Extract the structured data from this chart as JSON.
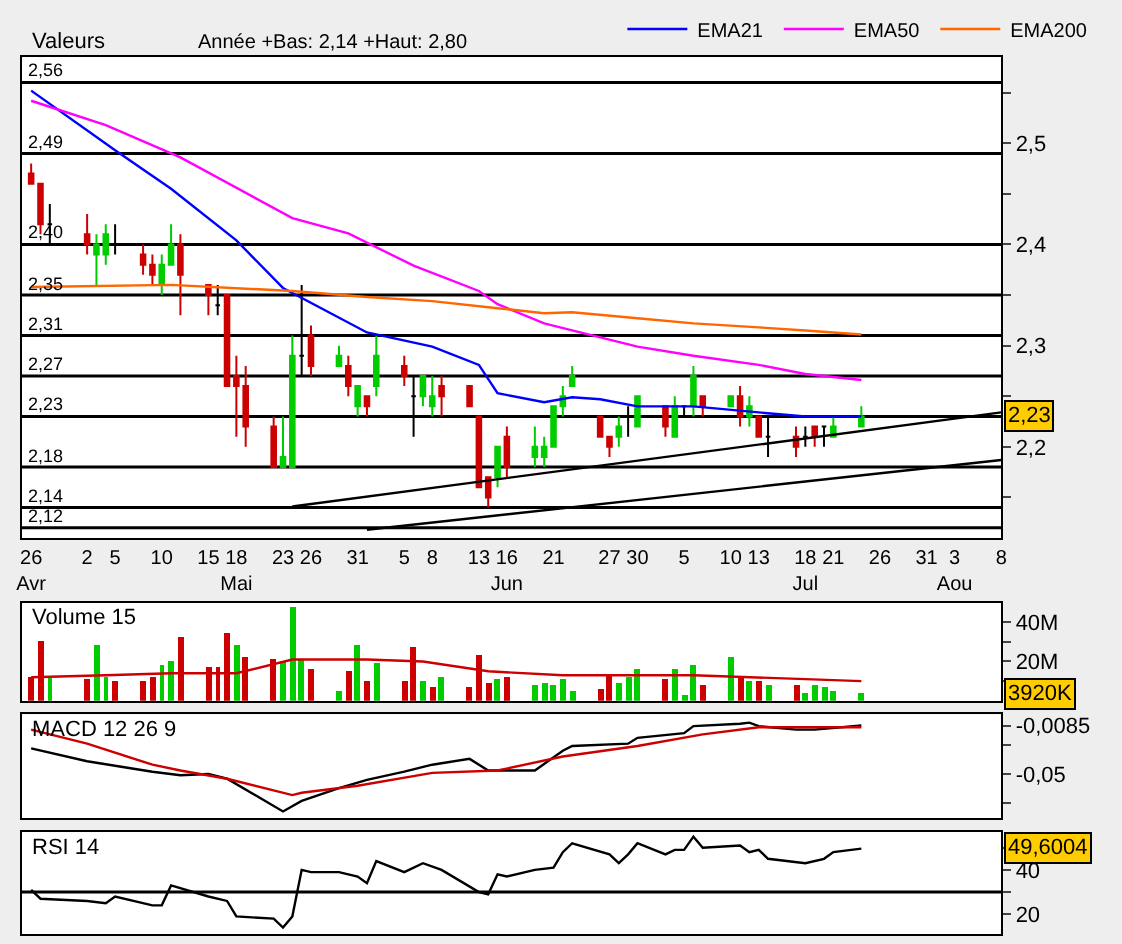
{
  "chart_data": [
    {
      "type": "candlestick",
      "title": "Valeurs",
      "annotations": [
        "Année +Bas: 2,14 +Haut: 2,80",
        {
          "text": "2,23",
          "y": 2.23
        }
      ],
      "x": [
        "--04-26",
        "--04-27",
        "--04-28",
        "--05-02",
        "--05-03",
        "--05-04",
        "--05-05",
        "--05-08",
        "--05-09",
        "--05-10",
        "--05-11",
        "--05-12",
        "--05-15",
        "--05-16",
        "--05-17",
        "--05-18",
        "--05-19",
        "--05-22",
        "--05-23",
        "--05-24",
        "--05-25",
        "--05-26",
        "--05-29",
        "--05-30",
        "--05-31",
        "--06-01",
        "--06-02",
        "--06-05",
        "--06-06",
        "--06-07",
        "--06-08",
        "--06-09",
        "--06-12",
        "--06-13",
        "--06-14",
        "--06-15",
        "--06-16",
        "--06-19",
        "--06-20",
        "--06-21",
        "--06-22",
        "--06-23",
        "--06-26",
        "--06-27",
        "--06-28",
        "--06-29",
        "--06-30",
        "--07-03",
        "--07-04",
        "--07-05",
        "--07-06",
        "--07-07",
        "--07-10",
        "--07-11",
        "--07-12",
        "--07-13",
        "--07-14",
        "--07-17",
        "--07-18",
        "--07-19",
        "--07-20",
        "--07-21",
        "--07-24"
      ],
      "ohlc": [
        [
          2.47,
          2.48,
          2.46,
          2.46
        ],
        [
          2.46,
          2.46,
          2.41,
          2.42
        ],
        [
          2.42,
          2.44,
          2.4,
          2.42
        ],
        [
          2.41,
          2.43,
          2.39,
          2.4
        ],
        [
          2.39,
          2.41,
          2.36,
          2.4
        ],
        [
          2.39,
          2.42,
          2.38,
          2.41
        ],
        [
          2.4,
          2.42,
          2.39,
          2.4
        ],
        [
          2.39,
          2.4,
          2.37,
          2.38
        ],
        [
          2.38,
          2.39,
          2.36,
          2.37
        ],
        [
          2.36,
          2.39,
          2.35,
          2.38
        ],
        [
          2.38,
          2.42,
          2.38,
          2.4
        ],
        [
          2.4,
          2.41,
          2.33,
          2.37
        ],
        [
          2.36,
          2.36,
          2.33,
          2.35
        ],
        [
          2.34,
          2.36,
          2.33,
          2.34
        ],
        [
          2.35,
          2.35,
          2.26,
          2.26
        ],
        [
          2.27,
          2.29,
          2.21,
          2.26
        ],
        [
          2.26,
          2.28,
          2.2,
          2.22
        ],
        [
          2.22,
          2.23,
          2.18,
          2.18
        ],
        [
          2.18,
          2.23,
          2.18,
          2.19
        ],
        [
          2.18,
          2.31,
          2.18,
          2.29
        ],
        [
          2.29,
          2.36,
          2.27,
          2.29
        ],
        [
          2.31,
          2.32,
          2.27,
          2.28
        ],
        [
          2.28,
          2.3,
          2.28,
          2.29
        ],
        [
          2.28,
          2.29,
          2.25,
          2.26
        ],
        [
          2.24,
          2.26,
          2.23,
          2.26
        ],
        [
          2.25,
          2.25,
          2.23,
          2.24
        ],
        [
          2.26,
          2.31,
          2.25,
          2.29
        ],
        [
          2.28,
          2.29,
          2.26,
          2.27
        ],
        [
          2.25,
          2.27,
          2.21,
          2.25
        ],
        [
          2.25,
          2.27,
          2.24,
          2.27
        ],
        [
          2.24,
          2.27,
          2.23,
          2.25
        ],
        [
          2.26,
          2.27,
          2.23,
          2.25
        ],
        [
          2.26,
          2.26,
          2.24,
          2.24
        ],
        [
          2.23,
          2.23,
          2.16,
          2.16
        ],
        [
          2.17,
          2.17,
          2.14,
          2.15
        ],
        [
          2.17,
          2.2,
          2.16,
          2.2
        ],
        [
          2.21,
          2.22,
          2.17,
          2.18
        ],
        [
          2.19,
          2.22,
          2.18,
          2.2
        ],
        [
          2.19,
          2.21,
          2.18,
          2.2
        ],
        [
          2.2,
          2.24,
          2.2,
          2.24
        ],
        [
          2.24,
          2.26,
          2.23,
          2.25
        ],
        [
          2.26,
          2.28,
          2.26,
          2.27
        ],
        [
          2.23,
          2.23,
          2.21,
          2.21
        ],
        [
          2.21,
          2.21,
          2.19,
          2.2
        ],
        [
          2.21,
          2.23,
          2.2,
          2.22
        ],
        [
          2.23,
          2.24,
          2.21,
          2.23
        ],
        [
          2.22,
          2.25,
          2.22,
          2.25
        ],
        [
          2.24,
          2.24,
          2.21,
          2.22
        ],
        [
          2.21,
          2.25,
          2.21,
          2.24
        ],
        [
          2.24,
          2.24,
          2.23,
          2.24
        ],
        [
          2.24,
          2.28,
          2.23,
          2.27
        ],
        [
          2.25,
          2.25,
          2.23,
          2.24
        ],
        [
          2.24,
          2.25,
          2.24,
          2.25
        ],
        [
          2.25,
          2.26,
          2.22,
          2.23
        ],
        [
          2.23,
          2.25,
          2.22,
          2.24
        ],
        [
          2.23,
          2.23,
          2.21,
          2.21
        ],
        [
          2.21,
          2.23,
          2.19,
          2.21
        ],
        [
          2.21,
          2.22,
          2.19,
          2.2
        ],
        [
          2.21,
          2.22,
          2.2,
          2.21
        ],
        [
          2.22,
          2.22,
          2.2,
          2.21
        ],
        [
          2.22,
          2.22,
          2.2,
          2.22
        ],
        [
          2.21,
          2.23,
          2.21,
          2.22
        ],
        [
          2.22,
          2.24,
          2.22,
          2.23
        ]
      ],
      "colors": [
        "#cc0000",
        "#cc0000",
        "#000000",
        "#cc0000",
        "#00cc00",
        "#00cc00",
        "#000000",
        "#cc0000",
        "#cc0000",
        "#00cc00",
        "#00cc00",
        "#cc0000",
        "#cc0000",
        "#000000",
        "#cc0000",
        "#cc0000",
        "#cc0000",
        "#cc0000",
        "#00cc00",
        "#00cc00",
        "#000000",
        "#cc0000",
        "#00cc00",
        "#cc0000",
        "#00cc00",
        "#cc0000",
        "#00cc00",
        "#cc0000",
        "#000000",
        "#00cc00",
        "#00cc00",
        "#cc0000",
        "#cc0000",
        "#cc0000",
        "#cc0000",
        "#00cc00",
        "#cc0000",
        "#00cc00",
        "#00cc00",
        "#00cc00",
        "#00cc00",
        "#00cc00",
        "#cc0000",
        "#cc0000",
        "#00cc00",
        "#000000",
        "#00cc00",
        "#cc0000",
        "#00cc00",
        "#000000",
        "#00cc00",
        "#cc0000",
        "#00cc00",
        "#cc0000",
        "#00cc00",
        "#cc0000",
        "#000000",
        "#cc0000",
        "#000000",
        "#cc0000",
        "#000000",
        "#00cc00",
        "#00cc00"
      ],
      "series": [
        {
          "type": "line",
          "name": "EMA21",
          "color": "#0000ff",
          "x": [
            "--04-26",
            "--05-05",
            "--05-11",
            "--05-18",
            "--05-23",
            "--06-01",
            "--06-08",
            "--06-13",
            "--06-15",
            "--06-20",
            "--06-23",
            "--06-26",
            "--06-30",
            "--07-06",
            "--07-13",
            "--07-18",
            "--07-24"
          ],
          "values": [
            2.552,
            2.493,
            2.455,
            2.404,
            2.357,
            2.313,
            2.299,
            2.281,
            2.253,
            2.244,
            2.249,
            2.247,
            2.24,
            2.24,
            2.234,
            2.23,
            2.23
          ]
        },
        {
          "type": "line",
          "name": "EMA50",
          "color": "#ff00ff",
          "x": [
            "--04-26",
            "--05-04",
            "--05-12",
            "--05-24",
            "--05-30",
            "--06-06",
            "--06-13",
            "--06-15",
            "--06-20",
            "--06-23",
            "--06-30",
            "--07-06",
            "--07-13",
            "--07-18",
            "--07-24"
          ],
          "values": [
            2.542,
            2.518,
            2.486,
            2.426,
            2.411,
            2.379,
            2.354,
            2.341,
            2.322,
            2.315,
            2.299,
            2.29,
            2.281,
            2.272,
            2.266
          ]
        },
        {
          "type": "line",
          "name": "EMA200",
          "color": "#ff6600",
          "x": [
            "--04-26",
            "--05-11",
            "--05-24",
            "--06-01",
            "--06-08",
            "--06-15",
            "--06-20",
            "--06-23",
            "--06-30",
            "--07-06",
            "--07-13",
            "--07-18",
            "--07-24"
          ],
          "values": [
            2.358,
            2.36,
            2.354,
            2.348,
            2.344,
            2.337,
            2.332,
            2.333,
            2.327,
            2.322,
            2.318,
            2.315,
            2.311
          ]
        },
        {
          "type": "line",
          "color": "#000000",
          "x": [
            "--05-24",
            "--08-08"
          ],
          "values": [
            2.141,
            2.234
          ]
        },
        {
          "type": "line",
          "color": "#000000",
          "x": [
            "--06-01",
            "--08-08"
          ],
          "values": [
            2.118,
            2.187
          ]
        }
      ],
      "ref_lines": [
        {
          "axis": "y",
          "value": 2.56,
          "label": "2,56"
        },
        {
          "axis": "y",
          "value": 2.49,
          "label": "2,49"
        },
        {
          "axis": "y",
          "value": 2.4,
          "label": "2,40"
        },
        {
          "axis": "y",
          "value": 2.35,
          "label": "2,35"
        },
        {
          "axis": "y",
          "value": 2.31,
          "label": "2,31"
        },
        {
          "axis": "y",
          "value": 2.27,
          "label": "2,27"
        },
        {
          "axis": "y",
          "value": 2.23,
          "label": "2,23"
        },
        {
          "axis": "y",
          "value": 2.18,
          "label": "2,18"
        },
        {
          "axis": "y",
          "value": 2.14,
          "label": "2,14"
        },
        {
          "axis": "y",
          "value": 2.12,
          "label": "2,12"
        }
      ],
      "xlim": [
        "--04-25",
        "--08-08"
      ],
      "xticks": [
        {
          "value": "--04-26",
          "label": "26\nAvr"
        },
        {
          "value": "--05-02",
          "label": "2"
        },
        {
          "value": "--05-05",
          "label": "5"
        },
        {
          "value": "--05-10",
          "label": "10"
        },
        {
          "value": "--05-15",
          "label": "15"
        },
        {
          "value": "--05-18",
          "label": "18\nMai"
        },
        {
          "value": "--05-23",
          "label": "23"
        },
        {
          "value": "--05-26",
          "label": "26"
        },
        {
          "value": "--05-31",
          "label": "31"
        },
        {
          "value": "--06-05",
          "label": "5"
        },
        {
          "value": "--06-08",
          "label": "8"
        },
        {
          "value": "--06-13",
          "label": "13"
        },
        {
          "value": "--06-16",
          "label": "16\nJun"
        },
        {
          "value": "--06-21",
          "label": "21"
        },
        {
          "value": "--06-27",
          "label": "27"
        },
        {
          "value": "--06-30",
          "label": "30"
        },
        {
          "value": "--07-05",
          "label": "5"
        },
        {
          "value": "--07-10",
          "label": "10"
        },
        {
          "value": "--07-13",
          "label": "13"
        },
        {
          "value": "--07-18",
          "label": "18\nJul"
        },
        {
          "value": "--07-21",
          "label": "21"
        },
        {
          "value": "--07-26",
          "label": "26"
        },
        {
          "value": "--07-31",
          "label": "31"
        },
        {
          "value": "--08-03",
          "label": "3\nAou"
        },
        {
          "value": "--08-08",
          "label": "8"
        }
      ],
      "ylim": [
        2.11,
        2.585
      ],
      "yticks": [
        {
          "value": 2.15,
          "label": null
        },
        {
          "value": 2.2,
          "label": "2,2"
        },
        {
          "value": 2.25,
          "label": null
        },
        {
          "value": 2.3,
          "label": "2,3"
        },
        {
          "value": 2.35,
          "label": null
        },
        {
          "value": 2.4,
          "label": "2,4"
        },
        {
          "value": 2.45,
          "label": null
        },
        {
          "value": 2.5,
          "label": "2,5"
        },
        {
          "value": 2.55,
          "label": null
        }
      ],
      "legend": "top right"
    },
    {
      "type": "bar",
      "title": "Volume 15",
      "annotations": [
        {
          "text": "3920K",
          "y": 3.92
        }
      ],
      "x": [
        "--04-26",
        "--04-27",
        "--04-28",
        "--05-02",
        "--05-03",
        "--05-04",
        "--05-05",
        "--05-08",
        "--05-09",
        "--05-10",
        "--05-11",
        "--05-12",
        "--05-15",
        "--05-16",
        "--05-17",
        "--05-18",
        "--05-19",
        "--05-22",
        "--05-23",
        "--05-24",
        "--05-25",
        "--05-26",
        "--05-29",
        "--05-30",
        "--05-31",
        "--06-01",
        "--06-02",
        "--06-05",
        "--06-06",
        "--06-07",
        "--06-08",
        "--06-09",
        "--06-12",
        "--06-13",
        "--06-14",
        "--06-15",
        "--06-16",
        "--06-19",
        "--06-20",
        "--06-21",
        "--06-22",
        "--06-23",
        "--06-26",
        "--06-27",
        "--06-28",
        "--06-29",
        "--06-30",
        "--07-03",
        "--07-04",
        "--07-05",
        "--07-06",
        "--07-07",
        "--07-10",
        "--07-11",
        "--07-12",
        "--07-13",
        "--07-14",
        "--07-17",
        "--07-18",
        "--07-19",
        "--07-20",
        "--07-21",
        "--07-24"
      ],
      "series": [
        {
          "type": "bar",
          "values": [
            12,
            31,
            12,
            11,
            29,
            12,
            10,
            10,
            12,
            18,
            20,
            33,
            17,
            17,
            35,
            29,
            22,
            21,
            20,
            48,
            21,
            16,
            5,
            15,
            29,
            10,
            19,
            10,
            28,
            10,
            7,
            12,
            7,
            23,
            9,
            11,
            12,
            8,
            9,
            8,
            11,
            5,
            6,
            13,
            9,
            12,
            16,
            11,
            16,
            3,
            18,
            8,
            22,
            12,
            10,
            10,
            8,
            8,
            4,
            8,
            7,
            5,
            3.92
          ],
          "colors": [
            "#cc0000",
            "#cc0000",
            "#00cc00",
            "#cc0000",
            "#00cc00",
            "#00cc00",
            "#cc0000",
            "#cc0000",
            "#cc0000",
            "#00cc00",
            "#00cc00",
            "#cc0000",
            "#cc0000",
            "#cc0000",
            "#cc0000",
            "#00cc00",
            "#cc0000",
            "#cc0000",
            "#00cc00",
            "#00cc00",
            "#00cc00",
            "#cc0000",
            "#00cc00",
            "#cc0000",
            "#00cc00",
            "#cc0000",
            "#00cc00",
            "#cc0000",
            "#cc0000",
            "#00cc00",
            "#cc0000",
            "#00cc00",
            "#cc0000",
            "#cc0000",
            "#cc0000",
            "#00cc00",
            "#cc0000",
            "#00cc00",
            "#00cc00",
            "#00cc00",
            "#00cc00",
            "#00cc00",
            "#cc0000",
            "#cc0000",
            "#00cc00",
            "#00cc00",
            "#00cc00",
            "#cc0000",
            "#00cc00",
            "#00cc00",
            "#00cc00",
            "#cc0000",
            "#00cc00",
            "#cc0000",
            "#00cc00",
            "#cc0000",
            "#00cc00",
            "#cc0000",
            "#00cc00",
            "#00cc00",
            "#00cc00",
            "#00cc00",
            "#00cc00"
          ]
        },
        {
          "type": "line",
          "color": "#cc0000",
          "x": [
            "--04-26",
            "--05-04",
            "--05-11",
            "--05-18",
            "--05-24",
            "--06-01",
            "--06-07",
            "--06-14",
            "--06-22",
            "--07-06",
            "--07-18",
            "--07-24"
          ],
          "values": [
            12,
            13,
            14,
            14,
            21,
            21,
            20,
            15,
            13,
            13,
            11,
            10
          ]
        }
      ],
      "xlim": [
        "--04-25",
        "--08-08"
      ],
      "ylim": [
        0,
        50
      ],
      "yticks": [
        {
          "value": 10,
          "label": null
        },
        {
          "value": 20,
          "label": "20M"
        },
        {
          "value": 30,
          "label": null
        },
        {
          "value": 40,
          "label": "40M"
        }
      ],
      "tick_labels": "y"
    },
    {
      "type": "line",
      "title": "MACD 12 26 9",
      "series": [
        {
          "color": "#000000",
          "x": [
            "--04-26",
            "--05-02",
            "--05-09",
            "--05-12",
            "--05-15",
            "--05-17",
            "--05-23",
            "--05-25",
            "--05-29",
            "--06-01",
            "--06-05",
            "--06-08",
            "--06-12",
            "--06-14",
            "--06-19",
            "--06-22",
            "--06-23",
            "--06-29",
            "--06-30",
            "--07-05",
            "--07-06",
            "--07-11",
            "--07-12",
            "--07-13",
            "--07-17",
            "--07-19",
            "--07-24"
          ],
          "values": [
            -0.028,
            -0.039,
            -0.048,
            -0.051,
            -0.05,
            -0.054,
            -0.082,
            -0.073,
            -0.062,
            -0.055,
            -0.048,
            -0.042,
            -0.037,
            -0.047,
            -0.047,
            -0.03,
            -0.026,
            -0.024,
            -0.019,
            -0.015,
            -0.009,
            -0.007,
            -0.006,
            -0.009,
            -0.012,
            -0.012,
            -0.0085
          ]
        },
        {
          "color": "#cc0000",
          "x": [
            "--04-26",
            "--05-02",
            "--05-09",
            "--05-12",
            "--05-17",
            "--05-24",
            "--05-25",
            "--05-31",
            "--06-08",
            "--06-15",
            "--06-22",
            "--06-30",
            "--07-07",
            "--07-13",
            "--07-24"
          ],
          "values": [
            -0.012,
            -0.024,
            -0.042,
            -0.047,
            -0.054,
            -0.068,
            -0.066,
            -0.06,
            -0.049,
            -0.047,
            -0.035,
            -0.026,
            -0.016,
            -0.01,
            -0.01
          ]
        }
      ],
      "xlim": [
        "--04-25",
        "--08-08"
      ],
      "ylim": [
        -0.088,
        0.001
      ],
      "yticks": [
        {
          "value": -0.075,
          "label": null
        },
        {
          "value": -0.05,
          "label": "-0,05"
        },
        {
          "value": -0.025,
          "label": null
        },
        {
          "value": -0.0085,
          "label": "-0,0085"
        }
      ],
      "tick_labels": "y"
    },
    {
      "type": "line",
      "title": "RSI 14",
      "annotations": [
        {
          "text": "49,6004",
          "y": 49.6
        }
      ],
      "series": [
        {
          "color": "#000000",
          "x": [
            "--04-26",
            "--04-27",
            "--05-02",
            "--05-04",
            "--05-05",
            "--05-09",
            "--05-10",
            "--05-11",
            "--05-15",
            "--05-17",
            "--05-18",
            "--05-22",
            "--05-23",
            "--05-24",
            "--05-25",
            "--05-26",
            "--05-29",
            "--05-31",
            "--06-01",
            "--06-02",
            "--06-05",
            "--06-07",
            "--06-09",
            "--06-13",
            "--06-14",
            "--06-15",
            "--06-16",
            "--06-19",
            "--06-21",
            "--06-22",
            "--06-23",
            "--06-27",
            "--06-28",
            "--06-29",
            "--06-30",
            "--07-03",
            "--07-04",
            "--07-05",
            "--07-06",
            "--07-07",
            "--07-11",
            "--07-12",
            "--07-13",
            "--07-14",
            "--07-18",
            "--07-20",
            "--07-21",
            "--07-24"
          ],
          "values": [
            31,
            27,
            26,
            25,
            28,
            24,
            24,
            33,
            28,
            26,
            19,
            18,
            14,
            19,
            40,
            39,
            39,
            37,
            34,
            44,
            39,
            43,
            40,
            30,
            29,
            38,
            37,
            40,
            41,
            48,
            52,
            47,
            43,
            47,
            52,
            47,
            49,
            49,
            55,
            50,
            51,
            48,
            49,
            45,
            43,
            45,
            48,
            49.6
          ]
        }
      ],
      "ref_lines": [
        {
          "axis": "y",
          "value": 30
        }
      ],
      "xlim": [
        "--04-25",
        "--08-08"
      ],
      "ylim": [
        11,
        57
      ],
      "yticks": [
        20,
        {
          "value": 30,
          "label": null
        },
        40,
        {
          "value": 50,
          "label": null
        }
      ],
      "tick_labels": "y"
    }
  ]
}
